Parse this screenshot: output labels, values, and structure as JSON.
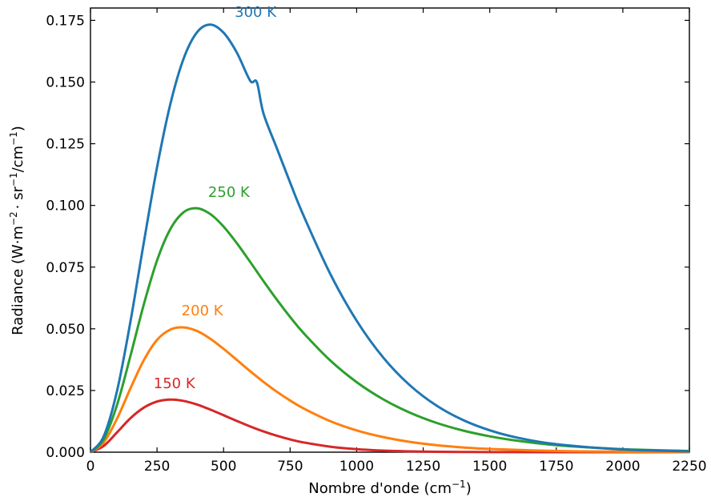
{
  "chart_data": {
    "type": "line",
    "title": "",
    "xlabel": "Nombre d'onde (cm",
    "xlabel_sup": "−1",
    "xlabel_close": ")",
    "ylabel_parts": [
      "Radiance (W·m",
      "−2",
      "· sr",
      "−1",
      "/cm",
      "−1",
      ")"
    ],
    "xlim": [
      0,
      2250
    ],
    "ylim": [
      0,
      0.18
    ],
    "x_ticks": [
      0,
      250,
      500,
      750,
      1000,
      1250,
      1500,
      1750,
      2000,
      2250
    ],
    "x_tick_labels": [
      "0",
      "250",
      "500",
      "750",
      "1000",
      "1250",
      "1500",
      "1750",
      "2000",
      "2250"
    ],
    "y_ticks": [
      0,
      0.025,
      0.05,
      0.075,
      0.1,
      0.125,
      0.15,
      0.175
    ],
    "y_tick_labels": [
      "0.000",
      "0.025",
      "0.050",
      "0.075",
      "0.100",
      "0.125",
      "0.150",
      "0.175"
    ],
    "grid": false,
    "series": [
      {
        "name": "150 K",
        "color": "#d62728",
        "x": [
          0,
          50,
          100,
          150,
          200,
          250,
          300,
          350,
          400,
          450,
          500,
          550,
          600,
          650,
          700,
          750,
          800,
          900,
          1000,
          1100,
          1200,
          1300,
          1400,
          1500,
          1750,
          2000,
          2250
        ],
        "y": [
          0,
          0.00256,
          0.00805,
          0.01375,
          0.01802,
          0.02052,
          0.02133,
          0.02078,
          0.01931,
          0.01728,
          0.01498,
          0.01265,
          0.01042,
          0.00841,
          0.00666,
          0.00518,
          0.00396,
          0.00224,
          0.00121,
          0.00063,
          0.00032,
          0.00016,
          8e-05,
          4e-05,
          1e-05,
          0,
          0
        ]
      },
      {
        "name": "200 K",
        "color": "#ff7f0e",
        "x": [
          0,
          50,
          100,
          150,
          200,
          250,
          300,
          350,
          400,
          450,
          500,
          550,
          600,
          650,
          700,
          750,
          800,
          900,
          1000,
          1100,
          1200,
          1300,
          1400,
          1500,
          1750,
          2000,
          2250
        ],
        "y": [
          0,
          0.00394,
          0.01362,
          0.02581,
          0.03719,
          0.04548,
          0.04968,
          0.05056,
          0.04912,
          0.04599,
          0.04188,
          0.03737,
          0.03282,
          0.02849,
          0.02451,
          0.02094,
          0.01777,
          0.01262,
          0.00883,
          0.00612,
          0.00417,
          0.00283,
          0.00192,
          0.00129,
          0.0005,
          0.00018,
          6e-05
        ]
      },
      {
        "name": "250 K",
        "color": "#2ca02c",
        "x": [
          0,
          50,
          100,
          150,
          200,
          250,
          300,
          350,
          400,
          450,
          500,
          550,
          600,
          650,
          700,
          750,
          800,
          900,
          1000,
          1100,
          1200,
          1300,
          1400,
          1500,
          1600,
          1750,
          2000,
          2250
        ],
        "y": [
          0,
          0.00523,
          0.01925,
          0.03895,
          0.05972,
          0.07767,
          0.0904,
          0.09724,
          0.09884,
          0.09651,
          0.09143,
          0.08467,
          0.07709,
          0.06933,
          0.06184,
          0.0548,
          0.04834,
          0.03726,
          0.02838,
          0.02141,
          0.01602,
          0.01188,
          0.00876,
          0.00643,
          0.00469,
          0.00285,
          0.00123,
          0.00051
        ]
      },
      {
        "name": "300 K",
        "color": "#1f77b4",
        "x": [
          0,
          50,
          100,
          150,
          200,
          250,
          300,
          350,
          400,
          450,
          500,
          550,
          600,
          625,
          650,
          700,
          750,
          800,
          900,
          1000,
          1100,
          1200,
          1300,
          1400,
          1500,
          1600,
          1750,
          2000,
          2250
        ],
        "y": [
          0,
          0.00649,
          0.02491,
          0.05282,
          0.08474,
          0.11539,
          0.14103,
          0.15952,
          0.17013,
          0.17328,
          0.17,
          0.1619,
          0.15053,
          0.1499,
          0.13725,
          0.12321,
          0.10927,
          0.09599,
          0.07244,
          0.05327,
          0.03833,
          0.0271,
          0.01888,
          0.013,
          0.00885,
          0.00597,
          0.00323,
          0.00109,
          0.00035
        ]
      }
    ],
    "annotations": [
      {
        "text": "300 K",
        "color": "#1f77b4",
        "x": 620,
        "y": 0.1765
      },
      {
        "text": "250 K",
        "color": "#2ca02c",
        "x": 520,
        "y": 0.1035
      },
      {
        "text": "200 K",
        "color": "#ff7f0e",
        "x": 420,
        "y": 0.0555
      },
      {
        "text": "150 K",
        "color": "#d62728",
        "x": 315,
        "y": 0.026
      }
    ]
  }
}
